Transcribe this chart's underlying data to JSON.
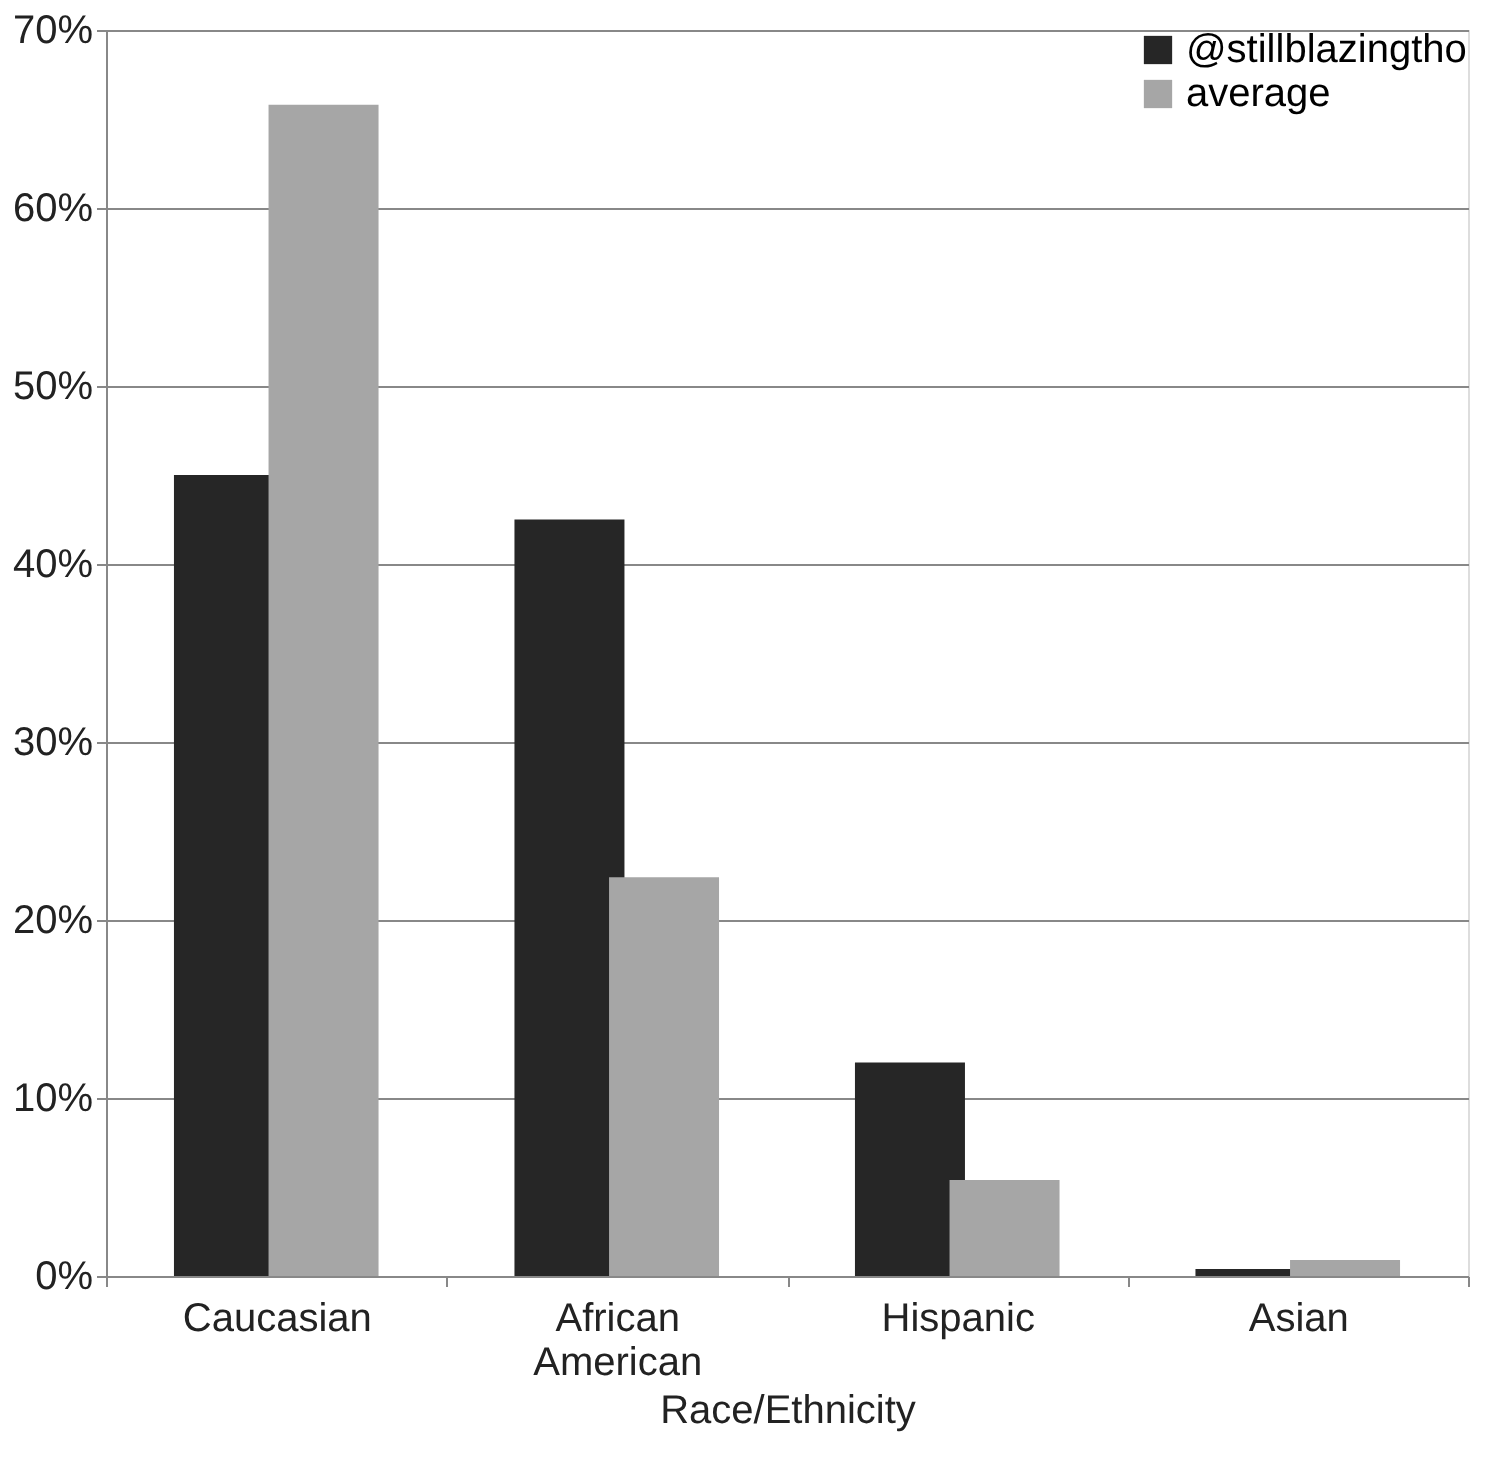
{
  "chart_data": {
    "type": "bar",
    "xlabel": "Race/Ethnicity",
    "categories": [
      "Caucasian",
      "African American",
      "Hispanic",
      "Asian"
    ],
    "series": [
      {
        "name": "@stillblazingtho",
        "color": "#262626",
        "values": [
          45,
          42.5,
          12,
          0.4
        ]
      },
      {
        "name": "average",
        "color": "#a6a6a6",
        "values": [
          65.8,
          22.4,
          5.4,
          0.9
        ]
      }
    ],
    "ylim": [
      0,
      70
    ],
    "yticks": [
      {
        "value": 0,
        "label": "0%"
      },
      {
        "value": 10,
        "label": "10%"
      },
      {
        "value": 20,
        "label": "20%"
      },
      {
        "value": 30,
        "label": "30%"
      },
      {
        "value": 40,
        "label": "40%"
      },
      {
        "value": 50,
        "label": "50%"
      },
      {
        "value": 60,
        "label": "60%"
      },
      {
        "value": 70,
        "label": "70%"
      }
    ],
    "grid": "y",
    "legend": "top right"
  }
}
